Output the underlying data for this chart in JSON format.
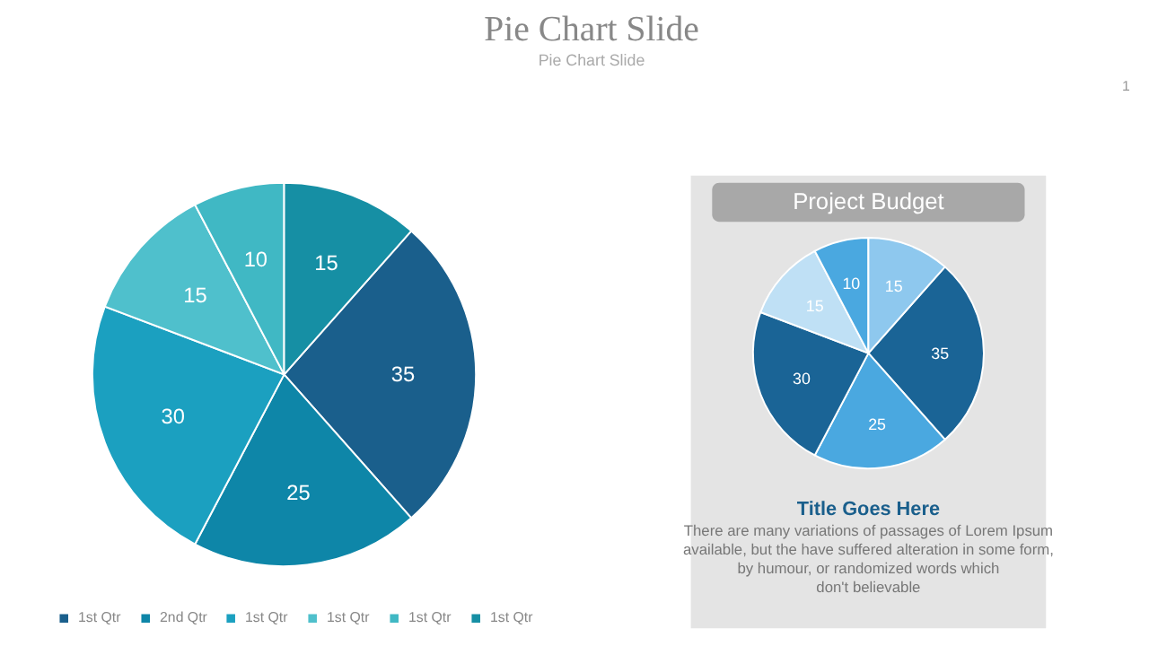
{
  "chart_data": [
    {
      "type": "pie",
      "title": "Pie Chart Slide",
      "subtitle": "Pie Chart Slide",
      "categories": [
        "1st Qtr",
        "2nd Qtr",
        "1st Qtr",
        "1st Qtr",
        "1st Qtr",
        "1st Qtr"
      ],
      "values": [
        35,
        25,
        30,
        15,
        10,
        15
      ],
      "colors": [
        "#1a5f8c",
        "#0e86a8",
        "#1ba0c0",
        "#4fc0cc",
        "#40b8c4",
        "#168fa4"
      ],
      "data_labels": true,
      "legend": "bottom",
      "annotations": [
        "1"
      ]
    },
    {
      "type": "pie",
      "title": "Project Budget",
      "categories": [
        null,
        null,
        null,
        null,
        null,
        null
      ],
      "values": [
        35,
        25,
        30,
        15,
        10,
        15
      ],
      "colors": [
        "#1a6496",
        "#4aa8e0",
        "#1a6496",
        "#bfe0f5",
        "#4aa8e0",
        "#8ec8ee"
      ],
      "data_labels": true,
      "annotations": [
        "Title Goes Here",
        "There are many variations of passages  of Lorem Ipsum\navailable, but the have suffered alteration in some  form,\nby humour, or randomized words which\ndon't believable"
      ]
    }
  ]
}
